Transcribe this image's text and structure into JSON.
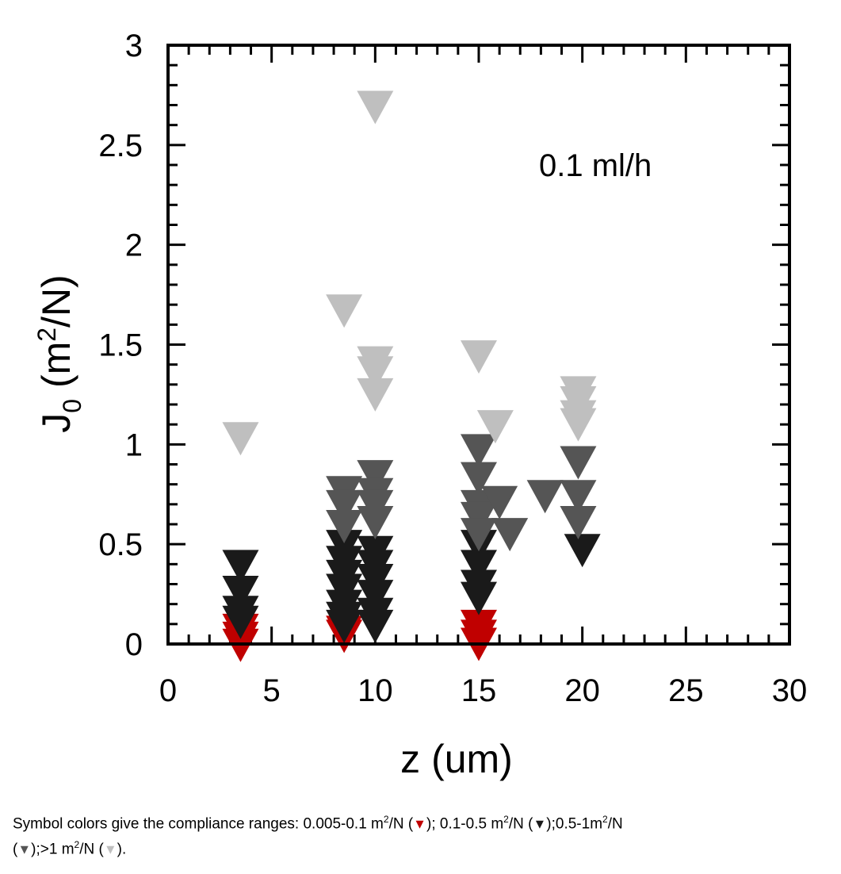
{
  "chart_data": {
    "type": "scatter",
    "xlabel": "z (um)",
    "ylabel_main": "J",
    "ylabel_sub": "0",
    "ylabel_units_pre": " (m",
    "ylabel_units_sup": "2",
    "ylabel_units_post": "/N)",
    "annotation": "0.1 ml/h",
    "xlim": [
      0,
      30
    ],
    "ylim": [
      0,
      3
    ],
    "xticks": [
      0,
      5,
      10,
      15,
      20,
      25,
      30
    ],
    "xtick_labels": [
      "0",
      "5",
      "10",
      "15",
      "20",
      "25",
      "30"
    ],
    "yticks": [
      0,
      0.5,
      1,
      1.5,
      2,
      2.5,
      3
    ],
    "ytick_labels": [
      "0",
      "0.5",
      "1",
      "1.5",
      "2",
      "2.5",
      "3"
    ],
    "marker": "down-triangle",
    "series": [
      {
        "name": "0.005-0.1 m2/N",
        "color": "#c00000",
        "points": [
          [
            3.5,
            0.08
          ],
          [
            3.5,
            0.04
          ],
          [
            3.5,
            0.005
          ],
          [
            8.5,
            0.07
          ],
          [
            8.5,
            0.05
          ],
          [
            15,
            0.1
          ],
          [
            15,
            0.05
          ],
          [
            15,
            0.01
          ]
        ]
      },
      {
        "name": "0.1-0.5 m2/N",
        "color": "#1a1a1a",
        "points": [
          [
            3.5,
            0.4
          ],
          [
            3.5,
            0.27
          ],
          [
            3.5,
            0.17
          ],
          [
            3.5,
            0.12
          ],
          [
            8.5,
            0.5
          ],
          [
            8.5,
            0.42
          ],
          [
            8.5,
            0.35
          ],
          [
            8.5,
            0.28
          ],
          [
            8.5,
            0.2
          ],
          [
            8.5,
            0.14
          ],
          [
            8.5,
            0.1
          ],
          [
            10,
            0.47
          ],
          [
            10,
            0.4
          ],
          [
            10,
            0.33
          ],
          [
            10,
            0.25
          ],
          [
            10,
            0.16
          ],
          [
            10,
            0.1
          ],
          [
            15,
            0.5
          ],
          [
            15,
            0.4
          ],
          [
            15,
            0.3
          ],
          [
            15,
            0.24
          ],
          [
            20,
            0.48
          ]
        ]
      },
      {
        "name": "0.5-1 m2/N",
        "color": "#555555",
        "points": [
          [
            8.5,
            0.77
          ],
          [
            8.5,
            0.7
          ],
          [
            8.5,
            0.6
          ],
          [
            10,
            0.85
          ],
          [
            10,
            0.76
          ],
          [
            10,
            0.7
          ],
          [
            10,
            0.62
          ],
          [
            15,
            0.98
          ],
          [
            15,
            0.84
          ],
          [
            15,
            0.7
          ],
          [
            15,
            0.64
          ],
          [
            15,
            0.56
          ],
          [
            16,
            0.72
          ],
          [
            16.5,
            0.56
          ],
          [
            18.2,
            0.75
          ],
          [
            19.8,
            0.92
          ],
          [
            19.8,
            0.75
          ],
          [
            19.8,
            0.62
          ]
        ]
      },
      {
        "name": ">1 m2/N",
        "color": "#bfbfbf",
        "points": [
          [
            3.5,
            1.04
          ],
          [
            8.5,
            1.68
          ],
          [
            10,
            2.7
          ],
          [
            10,
            1.42
          ],
          [
            10,
            1.37
          ],
          [
            10,
            1.26
          ],
          [
            15,
            1.45
          ],
          [
            15.8,
            1.1
          ],
          [
            19.8,
            1.27
          ],
          [
            19.8,
            1.22
          ],
          [
            19.8,
            1.15
          ],
          [
            19.8,
            1.11
          ]
        ]
      }
    ]
  },
  "caption": {
    "intro": "Symbol colors give the compliance ranges: ",
    "r1_pre": "0.005-0.1 m",
    "r1_sup": "2",
    "r1_post": "/N (",
    "r1_close": "); ",
    "r2_pre": "0.1-0.5 m",
    "r2_sup": "2",
    "r2_post": "/N (",
    "r2_close": ");",
    "r3_pre": "0.5-1m",
    "r3_sup": "2",
    "r3_post": "/N",
    "r3_open": "(",
    "r3_close": ");",
    "r4_pre": ">1 m",
    "r4_sup": "2",
    "r4_post": "/N (",
    "r4_close": ").",
    "tri": "▼",
    "tri_colors": [
      "#c00000",
      "#1a1a1a",
      "#555555",
      "#bfbfbf"
    ]
  }
}
